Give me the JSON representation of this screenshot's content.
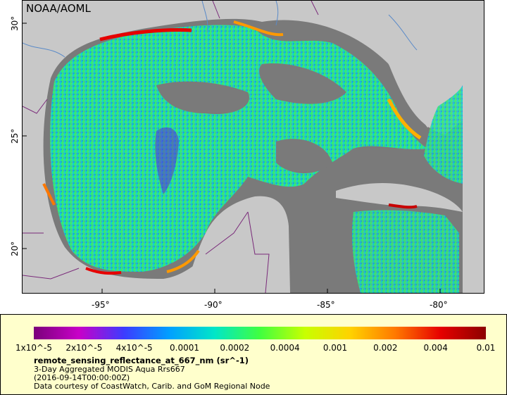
{
  "map": {
    "credit": "NOAA/AOML",
    "lon_ticks": [
      "-95°",
      "-90°",
      "-85°",
      "-80°"
    ],
    "lat_ticks": [
      "30°",
      "25°",
      "20°"
    ],
    "colors": {
      "land": "#c8c8c8",
      "nodata": "#7a7a7a",
      "border": "#7a2a7a",
      "river": "#5a8ac8"
    }
  },
  "legend": {
    "tick_labels": [
      "1x10^-5",
      "2x10^-5",
      "4x10^-5",
      "0.0001",
      "0.0002",
      "0.0004",
      "0.001",
      "0.002",
      "0.004",
      "0.01"
    ],
    "title": "remote_sensing_reflectance_at_667_nm (sr^-1)",
    "subtitle": "3-Day Aggregated MODIS Aqua Rrs667",
    "date": "(2016-09-14T00:00:00Z)",
    "courtesy": "Data courtesy of CoastWatch, Carib. and GoM Regional Node",
    "colormap": [
      "#7a007a",
      "#c800c8",
      "#3c3cff",
      "#00a0ff",
      "#00e6c8",
      "#40ff40",
      "#c8ff00",
      "#ffd200",
      "#ff7800",
      "#e60000",
      "#8c0000"
    ]
  }
}
